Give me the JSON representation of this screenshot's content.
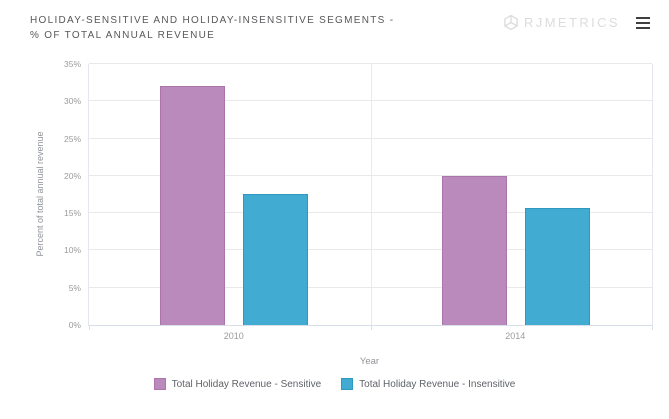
{
  "header": {
    "title_line1": "HOLIDAY-SENSITIVE AND HOLIDAY-INSENSITIVE SEGMENTS -",
    "title_line2": "% OF TOTAL ANNUAL REVENUE",
    "logo_text": "RJMETRICS"
  },
  "chart_data": {
    "type": "bar",
    "title": "Holiday-sensitive and holiday-insensitive segments - % of total annual revenue",
    "categories": [
      "2010",
      "2014"
    ],
    "series": [
      {
        "name": "Total Holiday Revenue - Sensitive",
        "color": "#ba8abc",
        "border_color": "#ab74ad",
        "values": [
          32,
          20
        ]
      },
      {
        "name": "Total Holiday Revenue - Insensitive",
        "color": "#41abd1",
        "border_color": "#2b99c2",
        "values": [
          17.6,
          15.7
        ]
      }
    ],
    "xlabel": "Year",
    "ylabel": "Percent of total annual revenue",
    "ylim": [
      0,
      35
    ],
    "yticks": [
      0,
      5,
      10,
      15,
      20,
      25,
      30,
      35
    ],
    "ytick_suffix": "%",
    "grid": true,
    "legend_position": "bottom"
  },
  "colors": {
    "title_text": "#57585a",
    "logo": "#dcdcdc",
    "menu_icon": "#3f3f3f",
    "grid": "#e9e9e9",
    "axis_line": "#d9dfe8",
    "plot_border": "#e4e8ee",
    "tick_label": "#9b9b9b",
    "axis_title": "#8f9398",
    "legend_text": "#5f6368"
  }
}
